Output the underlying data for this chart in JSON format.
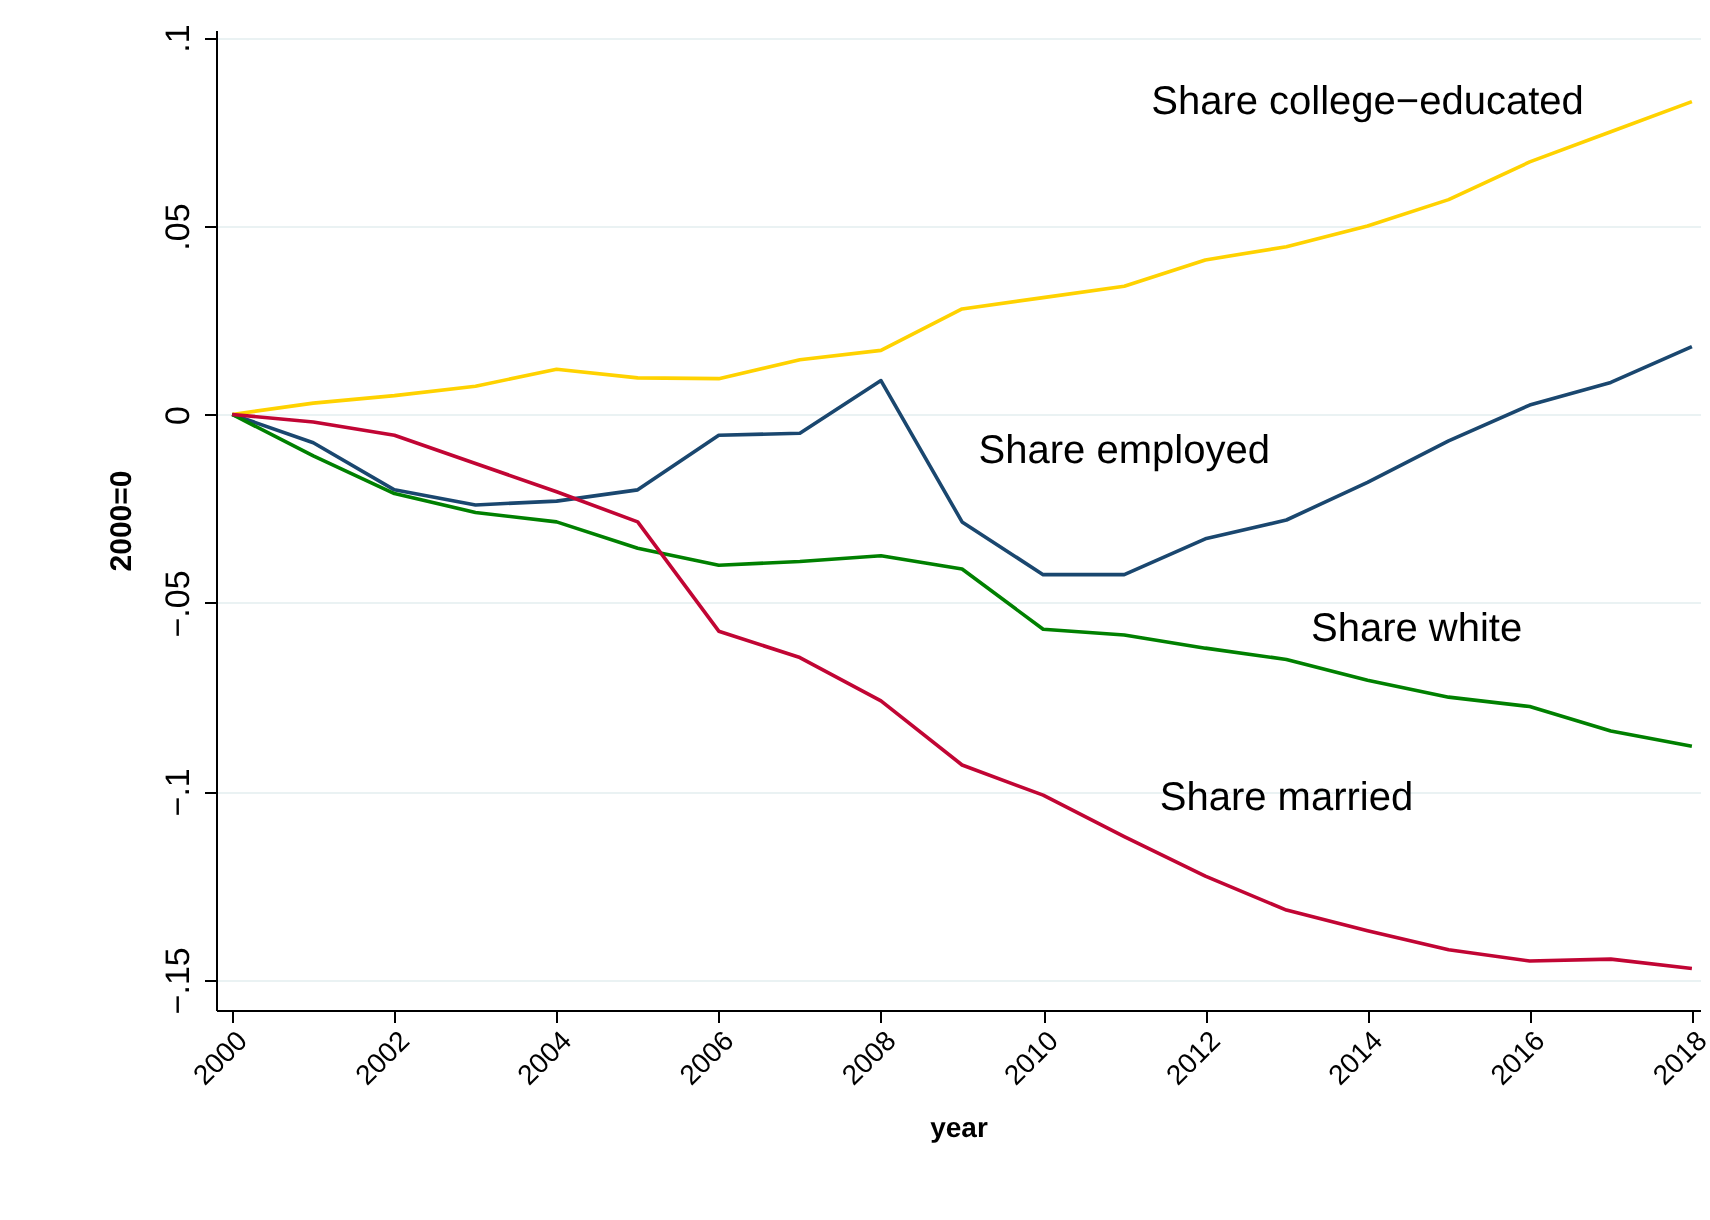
{
  "chart_data": {
    "type": "line",
    "xlabel": "year",
    "ylabel": "2000=0",
    "x": [
      2000,
      2001,
      2002,
      2003,
      2004,
      2005,
      2006,
      2007,
      2008,
      2009,
      2010,
      2011,
      2012,
      2013,
      2014,
      2015,
      2016,
      2017,
      2018
    ],
    "series": [
      {
        "name": "Share college−educated",
        "color": "#ffd200",
        "values": [
          0,
          0.003,
          0.005,
          0.0075,
          0.012,
          0.0097,
          0.0095,
          0.0145,
          0.017,
          0.028,
          0.031,
          0.034,
          0.041,
          0.0445,
          0.05,
          0.057,
          0.067,
          0.075,
          0.083
        ]
      },
      {
        "name": "Share employed",
        "color": "#1a476f",
        "values": [
          0,
          -0.0075,
          -0.02,
          -0.024,
          -0.023,
          -0.02,
          -0.0055,
          -0.005,
          0.009,
          -0.0285,
          -0.0425,
          -0.0425,
          -0.033,
          -0.028,
          -0.018,
          -0.007,
          0.0025,
          0.0085,
          0.018
        ]
      },
      {
        "name": "Share white",
        "color": "#008000",
        "values": [
          0,
          -0.011,
          -0.021,
          -0.026,
          -0.0285,
          -0.0355,
          -0.04,
          -0.039,
          -0.0375,
          -0.041,
          -0.057,
          -0.0585,
          -0.062,
          -0.065,
          -0.0705,
          -0.075,
          -0.0775,
          -0.084,
          -0.088
        ]
      },
      {
        "name": "Share married",
        "color": "#c10534",
        "values": [
          0,
          -0.002,
          -0.0055,
          -0.013,
          -0.0205,
          -0.0285,
          -0.0575,
          -0.0645,
          -0.076,
          -0.093,
          -0.101,
          -0.112,
          -0.1225,
          -0.1315,
          -0.137,
          -0.142,
          -0.145,
          -0.1445,
          -0.147
        ]
      }
    ],
    "xlim": [
      1999.8,
      2018.1
    ],
    "ylim": [
      -0.158,
      0.102
    ],
    "xticks": [
      2000,
      2002,
      2004,
      2006,
      2008,
      2010,
      2012,
      2014,
      2016,
      2018
    ],
    "yticks": [
      {
        "value": -0.15,
        "label": "−.15"
      },
      {
        "value": -0.1,
        "label": "−.1"
      },
      {
        "value": -0.05,
        "label": "−.05"
      },
      {
        "value": 0,
        "label": "0"
      },
      {
        "value": 0.05,
        "label": ".05"
      },
      {
        "value": 0.1,
        "label": ".1"
      }
    ],
    "grid": "y",
    "line_style": "solid"
  }
}
